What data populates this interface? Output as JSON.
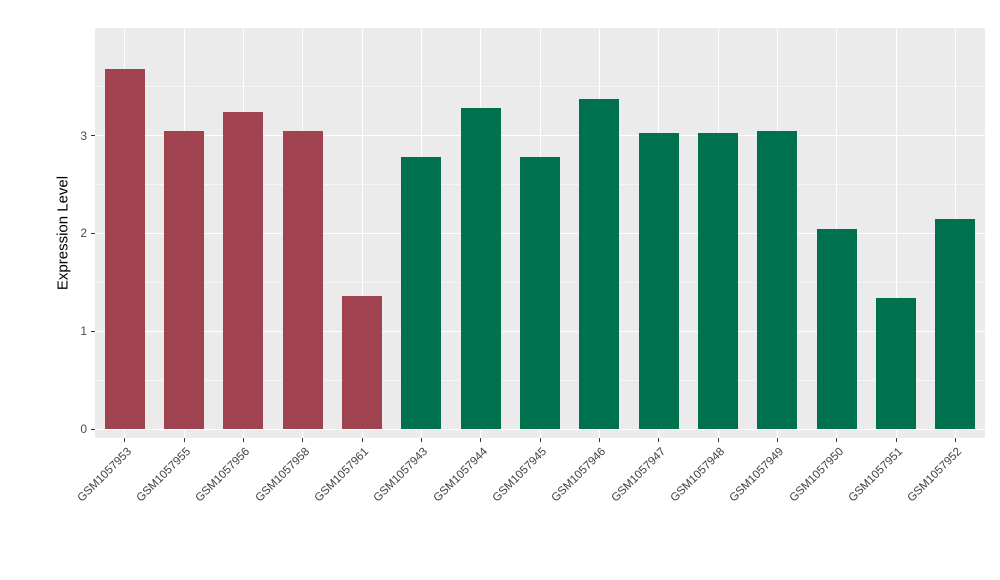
{
  "chart_data": {
    "type": "bar",
    "title": "",
    "xlabel": "",
    "ylabel": "Expression Level",
    "ylim": [
      0,
      4.1
    ],
    "yticks": [
      0,
      1,
      2,
      3
    ],
    "ytick_labels": [
      "0",
      "1",
      "2",
      "3"
    ],
    "grid": "on",
    "legend": "none",
    "panel_bg": "#EBEBEB",
    "grid_color": "#FFFFFF",
    "categories": [
      "GSM1057953",
      "GSM1057955",
      "GSM1057956",
      "GSM1057958",
      "GSM1057961",
      "GSM1057943",
      "GSM1057944",
      "GSM1057945",
      "GSM1057946",
      "GSM1057947",
      "GSM1057948",
      "GSM1057949",
      "GSM1057950",
      "GSM1057951",
      "GSM1057952"
    ],
    "values": [
      3.68,
      3.05,
      3.24,
      3.05,
      1.36,
      2.78,
      3.28,
      2.78,
      3.37,
      3.03,
      3.03,
      3.05,
      2.05,
      1.34,
      2.15
    ],
    "bar_groups": [
      "A",
      "A",
      "A",
      "A",
      "A",
      "B",
      "B",
      "B",
      "B",
      "B",
      "B",
      "B",
      "B",
      "B",
      "B"
    ],
    "group_colors": {
      "A": "#A04250",
      "B": "#00714E"
    }
  }
}
